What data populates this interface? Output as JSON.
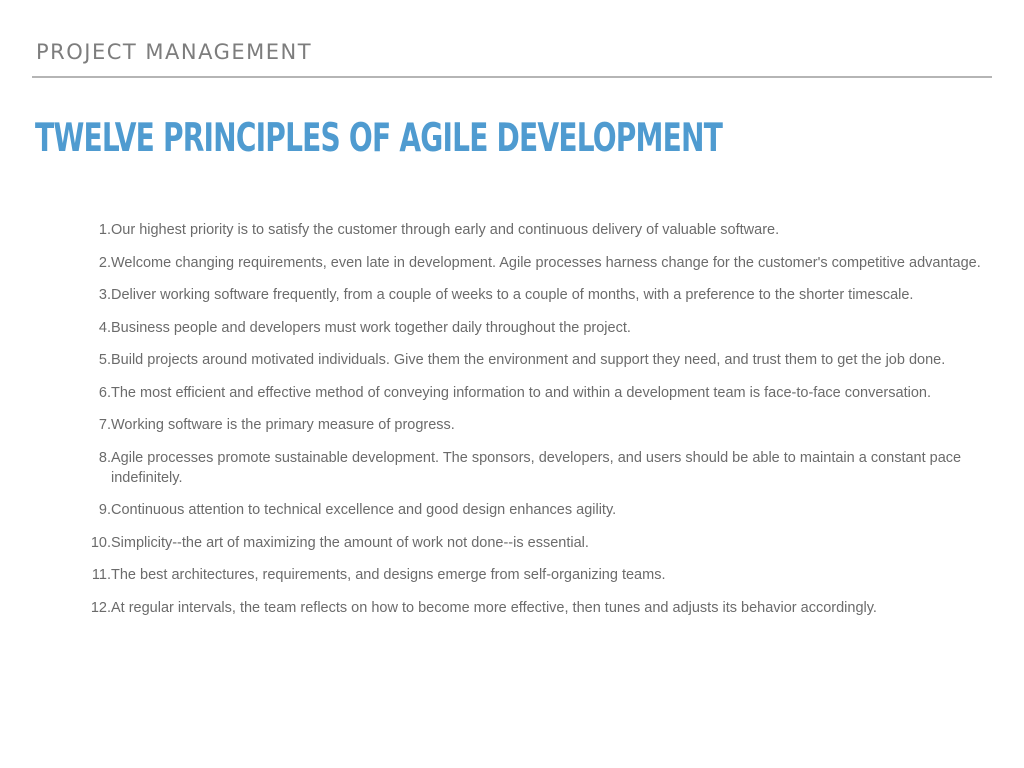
{
  "header": {
    "label": "PROJECT MANAGEMENT"
  },
  "slide": {
    "title": "TWELVE PRINCIPLES OF AGILE DEVELOPMENT"
  },
  "principles": [
    {
      "number": "1.",
      "text": "Our highest priority is to satisfy the customer through early and continuous delivery of valuable software."
    },
    {
      "number": "2.",
      "text": "Welcome changing requirements, even late in development. Agile processes harness change for the customer's competitive advantage."
    },
    {
      "number": "3.",
      "text": "Deliver working software frequently, from a couple of weeks to a couple of months, with a preference to the shorter timescale."
    },
    {
      "number": "4.",
      "text": "Business people and developers must work together daily throughout the project."
    },
    {
      "number": "5.",
      "text": "Build projects around motivated individuals. Give them the environment and support they need, and trust them to get the job done."
    },
    {
      "number": "6.",
      "text": "The most efficient and effective method of conveying information to and within a development team is face-to-face conversation."
    },
    {
      "number": "7.",
      "text": "Working software is the primary measure of progress."
    },
    {
      "number": "8.",
      "text": "Agile processes promote sustainable development. The sponsors, developers, and users should be able to maintain a constant pace indefinitely."
    },
    {
      "number": "9.",
      "text": "Continuous attention to technical excellence and good design enhances agility."
    },
    {
      "number": "10.",
      "text": "Simplicity--the art of maximizing the amount of work not done--is essential."
    },
    {
      "number": "11.",
      "text": "The best architectures, requirements, and designs emerge from self-organizing teams."
    },
    {
      "number": "12.",
      "text": "At regular intervals, the team reflects on how to become more effective, then tunes and adjusts its behavior accordingly."
    }
  ]
}
